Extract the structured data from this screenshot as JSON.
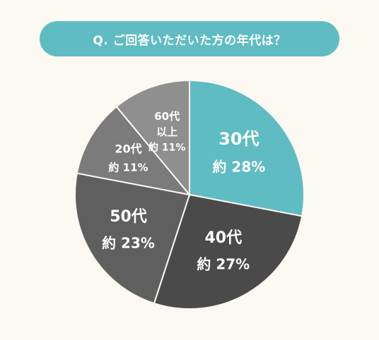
{
  "question": "Q. ご回答いただいた方の年代は？",
  "colors": {
    "background": "#fcf8f2",
    "accent": "#5fbcc3"
  },
  "chart_data": {
    "type": "pie",
    "title": "",
    "start_angle_deg": 0,
    "direction": "clockwise",
    "slices": [
      {
        "category": "30代",
        "value_text": "約 28%",
        "value": 28,
        "color": "#5fbcc3"
      },
      {
        "category": "40代",
        "value_text": "約 27%",
        "value": 27,
        "color": "#4a4a4a"
      },
      {
        "category": "50代",
        "value_text": "約 23%",
        "value": 23,
        "color": "#5f5f5f"
      },
      {
        "category": "20代",
        "value_text": "約 11%",
        "value": 11,
        "color": "#7b7b7b"
      },
      {
        "category": "60代 以上",
        "label_lines": [
          "60代",
          "以上"
        ],
        "value_text": "約 11%",
        "value": 11,
        "color": "#8f8f8f"
      }
    ]
  }
}
